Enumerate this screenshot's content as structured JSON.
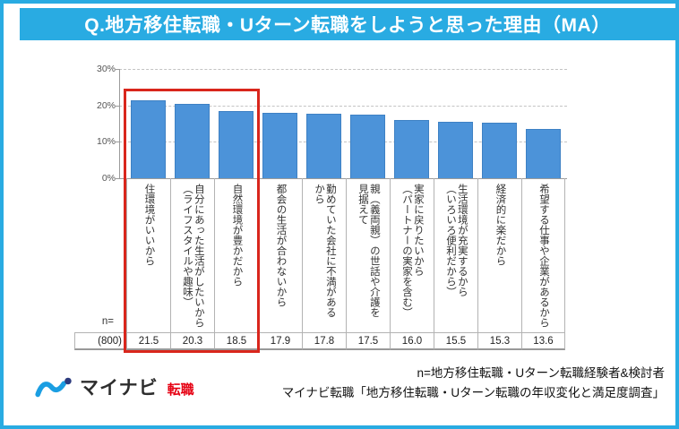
{
  "title": "Q.地方移住転職・Uターン転職をしようと思った理由（MA）",
  "chart_data": {
    "type": "bar",
    "title": "Q.地方移住転職・Uターン転職をしようと思った理由（MA）",
    "categories": [
      "住環境がいいから",
      "自分にあった生活がしたいから\n（ライフスタイルや趣味）",
      "自然環境が豊かだから",
      "都会の生活が合わないから",
      "勤めていた会社に不満がある\nから",
      "親（義両親）の世話や介護を\n見据えて",
      "実家に戻りたいから\n（パートナーの実家を含む）",
      "生活環境が充実するから\n（いろいろ便利だから）",
      "経済的に楽だから",
      "希望する仕事や企業があるから"
    ],
    "values": [
      21.5,
      20.3,
      18.5,
      17.9,
      17.8,
      17.5,
      16.0,
      15.5,
      15.3,
      13.6
    ],
    "unit": "%",
    "ylim": [
      0,
      30
    ],
    "yticks": [
      0,
      10,
      20,
      30
    ],
    "ytick_labels": [
      "0%",
      "10%",
      "20%",
      "30%"
    ],
    "grid": "horizontal-dashed",
    "legend": "none",
    "n_label": "n=",
    "n_value": "(800)",
    "highlighted_bars": [
      1,
      2,
      3
    ]
  },
  "footer": {
    "logo": {
      "icon": "mynavi-wave-icon",
      "brand": "マイナビ",
      "suffix": "転職"
    },
    "note1": "n=地方移住転職・Uターン転職経験者&検討者",
    "note2": "マイナビ転職「地方移住転職・Uターン転職の年収変化と満足度調査」"
  },
  "colors": {
    "banner_blue": "#29abe2",
    "bar_blue": "#4c93d9",
    "highlight_red": "#d9261c",
    "logo_red": "#e60012",
    "logo_blue": "#1b9ee2",
    "logo_navy": "#2c3a7d"
  }
}
